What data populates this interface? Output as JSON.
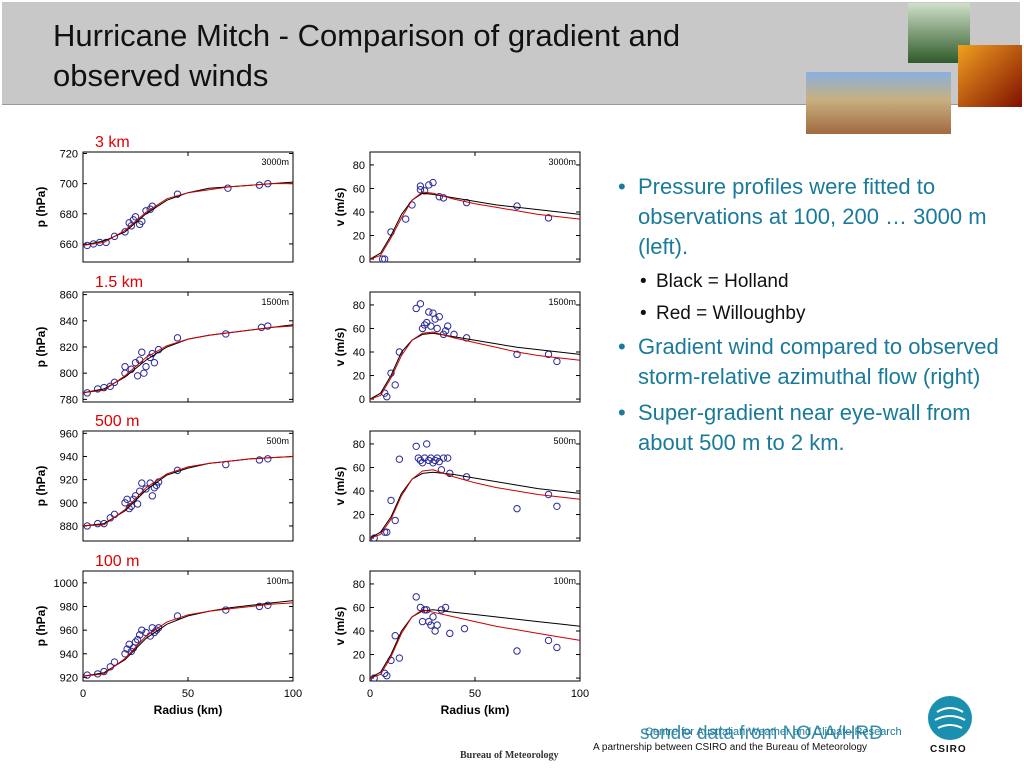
{
  "header": {
    "title": "Hurricane Mitch - Comparison of gradient and observed winds"
  },
  "bullets": [
    {
      "text": "Pressure profiles were fitted to observations at 100, 200 … 3000 m (left).",
      "level": 1
    },
    {
      "text": "Black = Holland",
      "level": 2
    },
    {
      "text": "Red = Willoughby",
      "level": 2
    },
    {
      "text": "Gradient wind compared to observed storm-relative azimuthal flow (right)",
      "level": 1
    },
    {
      "text": "Super-gradient near eye-wall from about 500 m to 2 km.",
      "level": 1
    }
  ],
  "footer": {
    "source": "sonde data from NOAA/HRD",
    "centre": "Centre for Australian Weather and Climate Research",
    "partnership": "A partnership between CSIRO and the Bureau of Meteorology",
    "bureau": "Bureau of Meteorology",
    "logo": "CSIRO"
  },
  "chart_data": [
    {
      "type": "scatter",
      "title": "3 km",
      "annotation": "3000m",
      "ylabel": "p (hPa)",
      "xlim": [
        0,
        100
      ],
      "xticks": [
        0,
        50,
        100
      ],
      "ylim": [
        648,
        721
      ],
      "yticks": [
        660,
        680,
        700,
        720
      ],
      "series": [
        {
          "color": "#2a2a9a",
          "mode": "markers",
          "x": [
            2,
            5,
            8,
            11,
            15,
            20,
            22,
            23,
            24,
            25,
            27,
            28,
            30,
            32,
            33,
            45,
            69,
            84,
            88
          ],
          "values": [
            659,
            660,
            661,
            661,
            665,
            668,
            674,
            672,
            676,
            678,
            673,
            675,
            682,
            683,
            685,
            693,
            697,
            699,
            700
          ]
        },
        {
          "color": "#000000",
          "mode": "line",
          "x": [
            0,
            10,
            20,
            30,
            40,
            50,
            60,
            70,
            80,
            90,
            100
          ],
          "values": [
            659,
            662,
            668,
            680,
            689,
            694,
            697,
            698,
            699,
            700,
            701
          ]
        },
        {
          "color": "#cc0000",
          "mode": "line",
          "x": [
            0,
            10,
            20,
            30,
            40,
            50,
            60,
            70,
            80,
            90,
            100
          ],
          "values": [
            659,
            661,
            669,
            681,
            690,
            694,
            696,
            698,
            699,
            700,
            700
          ]
        }
      ]
    },
    {
      "type": "scatter",
      "annotation": "3000m",
      "ylabel": "v (m/s)",
      "xlim": [
        0,
        100
      ],
      "xticks": [
        0,
        50,
        100
      ],
      "ylim": [
        -2.5,
        91
      ],
      "yticks": [
        0,
        20,
        40,
        60,
        80
      ],
      "series": [
        {
          "color": "#2a2a9a",
          "mode": "markers",
          "x": [
            6,
            7,
            10,
            17,
            20,
            24,
            24,
            26,
            28,
            30,
            33,
            35,
            46,
            70,
            85
          ],
          "values": [
            0,
            0,
            23,
            34,
            46,
            62,
            59,
            58,
            63,
            65,
            53,
            52,
            48,
            45,
            35
          ]
        },
        {
          "color": "#000000",
          "mode": "line",
          "x": [
            0,
            5,
            10,
            15,
            20,
            25,
            30,
            40,
            50,
            60,
            70,
            80,
            90,
            100
          ],
          "values": [
            0,
            5,
            20,
            38,
            50,
            56,
            55,
            52,
            49,
            46,
            44,
            42,
            40,
            38
          ]
        },
        {
          "color": "#cc0000",
          "mode": "line",
          "x": [
            0,
            5,
            10,
            15,
            20,
            25,
            30,
            40,
            50,
            60,
            70,
            80,
            90,
            100
          ],
          "values": [
            0,
            3,
            18,
            35,
            50,
            57,
            56,
            51,
            47,
            44,
            41,
            38,
            36,
            34
          ]
        }
      ]
    },
    {
      "type": "scatter",
      "title": "1.5 km",
      "annotation": "1500m",
      "ylabel": "p (hPa)",
      "xlim": [
        0,
        100
      ],
      "xticks": [
        0,
        50,
        100
      ],
      "ylim": [
        778,
        862
      ],
      "yticks": [
        780,
        800,
        820,
        840,
        860
      ],
      "series": [
        {
          "color": "#2a2a9a",
          "mode": "markers",
          "x": [
            2,
            7,
            10,
            13,
            15,
            20,
            20,
            23,
            25,
            26,
            27,
            28,
            29,
            30,
            32,
            33,
            34,
            36,
            45,
            68,
            85,
            88
          ],
          "values": [
            785,
            788,
            789,
            790,
            793,
            800,
            805,
            803,
            808,
            798,
            810,
            816,
            800,
            805,
            812,
            815,
            808,
            818,
            827,
            830,
            835,
            836
          ]
        },
        {
          "color": "#000000",
          "mode": "line",
          "x": [
            0,
            10,
            20,
            30,
            40,
            50,
            60,
            70,
            80,
            90,
            100
          ],
          "values": [
            785,
            788,
            797,
            810,
            820,
            826,
            829,
            831,
            833,
            835,
            837
          ]
        },
        {
          "color": "#cc0000",
          "mode": "line",
          "x": [
            0,
            10,
            20,
            30,
            40,
            50,
            60,
            70,
            80,
            90,
            100
          ],
          "values": [
            785,
            787,
            798,
            812,
            821,
            826,
            829,
            831,
            833,
            835,
            836
          ]
        }
      ]
    },
    {
      "type": "scatter",
      "annotation": "1500m",
      "ylabel": "v (m/s)",
      "xlim": [
        0,
        100
      ],
      "xticks": [
        0,
        50,
        100
      ],
      "ylim": [
        -2.5,
        91
      ],
      "yticks": [
        0,
        20,
        40,
        60,
        80
      ],
      "series": [
        {
          "color": "#2a2a9a",
          "mode": "markers",
          "x": [
            7,
            8,
            10,
            12,
            14,
            22,
            24,
            25,
            26,
            27,
            28,
            29,
            30,
            31,
            32,
            33,
            35,
            36,
            37,
            40,
            46,
            70,
            85,
            89
          ],
          "values": [
            5,
            2,
            22,
            12,
            40,
            77,
            81,
            60,
            63,
            65,
            74,
            62,
            73,
            68,
            60,
            70,
            55,
            58,
            62,
            55,
            52,
            38,
            38,
            32
          ]
        },
        {
          "color": "#000000",
          "mode": "line",
          "x": [
            0,
            5,
            10,
            15,
            20,
            25,
            30,
            40,
            50,
            60,
            70,
            80,
            90,
            100
          ],
          "values": [
            0,
            5,
            20,
            40,
            50,
            55,
            56,
            53,
            50,
            47,
            44,
            42,
            40,
            38
          ]
        },
        {
          "color": "#cc0000",
          "mode": "line",
          "x": [
            0,
            5,
            10,
            15,
            20,
            25,
            30,
            40,
            50,
            60,
            70,
            80,
            90,
            100
          ],
          "values": [
            0,
            3,
            18,
            37,
            50,
            56,
            57,
            52,
            48,
            44,
            40,
            37,
            35,
            33
          ]
        }
      ]
    },
    {
      "type": "scatter",
      "title": "500 m",
      "annotation": "500m",
      "ylabel": "p (hPa)",
      "xlim": [
        0,
        100
      ],
      "xticks": [
        0,
        50,
        100
      ],
      "ylim": [
        867,
        962
      ],
      "yticks": [
        880,
        900,
        920,
        940,
        960
      ],
      "series": [
        {
          "color": "#2a2a9a",
          "mode": "markers",
          "x": [
            2,
            7,
            10,
            13,
            15,
            20,
            21,
            22,
            23,
            24,
            25,
            26,
            27,
            28,
            30,
            32,
            33,
            34,
            35,
            36,
            45,
            68,
            84,
            88
          ],
          "values": [
            880,
            882,
            882,
            887,
            890,
            900,
            903,
            895,
            897,
            903,
            906,
            899,
            910,
            917,
            912,
            917,
            906,
            913,
            915,
            918,
            928,
            933,
            937,
            938
          ]
        },
        {
          "color": "#000000",
          "mode": "line",
          "x": [
            0,
            10,
            20,
            30,
            40,
            50,
            60,
            70,
            80,
            90,
            100
          ],
          "values": [
            880,
            882,
            893,
            911,
            924,
            930,
            934,
            936,
            938,
            939,
            940
          ]
        },
        {
          "color": "#cc0000",
          "mode": "line",
          "x": [
            0,
            10,
            20,
            30,
            40,
            50,
            60,
            70,
            80,
            90,
            100
          ],
          "values": [
            880,
            881,
            894,
            913,
            925,
            931,
            934,
            936,
            938,
            939,
            940
          ]
        }
      ]
    },
    {
      "type": "scatter",
      "annotation": "500m",
      "ylabel": "v (m/s)",
      "xlim": [
        0,
        100
      ],
      "xticks": [
        0,
        50,
        100
      ],
      "ylim": [
        -2.5,
        91
      ],
      "yticks": [
        0,
        20,
        40,
        60,
        80
      ],
      "series": [
        {
          "color": "#2a2a9a",
          "mode": "markers",
          "x": [
            2,
            7,
            8,
            10,
            12,
            14,
            22,
            23,
            24,
            25,
            26,
            27,
            28,
            29,
            30,
            31,
            32,
            33,
            34,
            35,
            37,
            38,
            46,
            70,
            85,
            89
          ],
          "values": [
            0,
            5,
            5,
            32,
            15,
            67,
            78,
            68,
            66,
            64,
            68,
            80,
            66,
            68,
            64,
            66,
            68,
            65,
            58,
            68,
            68,
            55,
            52,
            25,
            37,
            27
          ]
        },
        {
          "color": "#000000",
          "mode": "line",
          "x": [
            0,
            5,
            10,
            15,
            20,
            25,
            30,
            40,
            50,
            60,
            70,
            80,
            90,
            100
          ],
          "values": [
            0,
            5,
            18,
            38,
            50,
            55,
            56,
            54,
            51,
            48,
            45,
            42,
            40,
            38
          ]
        },
        {
          "color": "#cc0000",
          "mode": "line",
          "x": [
            0,
            5,
            10,
            15,
            20,
            25,
            30,
            40,
            50,
            60,
            70,
            80,
            90,
            100
          ],
          "values": [
            0,
            3,
            16,
            36,
            50,
            57,
            58,
            52,
            47,
            43,
            40,
            37,
            35,
            33
          ]
        }
      ]
    },
    {
      "type": "scatter",
      "title": "100 m",
      "annotation": "100m",
      "ylabel": "p (hPa)",
      "xlabel": "Radius (km)",
      "xlim": [
        0,
        100
      ],
      "xticks": [
        0,
        50,
        100
      ],
      "ylim": [
        917,
        1010
      ],
      "yticks": [
        920,
        940,
        960,
        980,
        1000
      ],
      "series": [
        {
          "color": "#2a2a9a",
          "mode": "markers",
          "x": [
            2,
            7,
            10,
            13,
            15,
            20,
            21,
            22,
            23,
            24,
            25,
            26,
            27,
            28,
            30,
            32,
            33,
            34,
            35,
            36,
            45,
            68,
            84,
            88
          ],
          "values": [
            922,
            923,
            925,
            929,
            933,
            940,
            944,
            948,
            942,
            945,
            950,
            952,
            956,
            960,
            958,
            955,
            962,
            958,
            960,
            962,
            972,
            977,
            980,
            981
          ]
        },
        {
          "color": "#000000",
          "mode": "line",
          "x": [
            0,
            10,
            20,
            30,
            40,
            50,
            60,
            70,
            80,
            90,
            100
          ],
          "values": [
            921,
            924,
            935,
            953,
            965,
            972,
            976,
            979,
            981,
            983,
            985
          ]
        },
        {
          "color": "#cc0000",
          "mode": "line",
          "x": [
            0,
            10,
            20,
            30,
            40,
            50,
            60,
            70,
            80,
            90,
            100
          ],
          "values": [
            921,
            923,
            936,
            955,
            967,
            973,
            976,
            978,
            980,
            982,
            983
          ]
        }
      ]
    },
    {
      "type": "scatter",
      "annotation": "100m",
      "ylabel": "v (m/s)",
      "xlabel": "Radius (km)",
      "xlim": [
        0,
        100
      ],
      "xticks": [
        0,
        50,
        100
      ],
      "ylim": [
        -2.5,
        91
      ],
      "yticks": [
        0,
        20,
        40,
        60,
        80
      ],
      "series": [
        {
          "color": "#2a2a9a",
          "mode": "markers",
          "x": [
            2,
            7,
            8,
            10,
            12,
            14,
            22,
            24,
            25,
            26,
            27,
            28,
            29,
            30,
            31,
            32,
            34,
            36,
            38,
            45,
            70,
            85,
            89
          ],
          "values": [
            0,
            4,
            2,
            15,
            36,
            17,
            69,
            60,
            48,
            58,
            58,
            48,
            45,
            52,
            40,
            45,
            58,
            60,
            38,
            42,
            23,
            32,
            26
          ]
        },
        {
          "color": "#000000",
          "mode": "line",
          "x": [
            0,
            5,
            10,
            15,
            20,
            25,
            30,
            40,
            50,
            60,
            70,
            80,
            90,
            100
          ],
          "values": [
            0,
            5,
            20,
            40,
            52,
            57,
            58,
            56,
            54,
            52,
            50,
            48,
            46,
            44
          ]
        },
        {
          "color": "#cc0000",
          "mode": "line",
          "x": [
            0,
            5,
            10,
            15,
            20,
            25,
            30,
            40,
            50,
            60,
            70,
            80,
            90,
            100
          ],
          "values": [
            0,
            3,
            18,
            38,
            52,
            58,
            56,
            52,
            48,
            44,
            41,
            38,
            35,
            32
          ]
        }
      ]
    }
  ]
}
